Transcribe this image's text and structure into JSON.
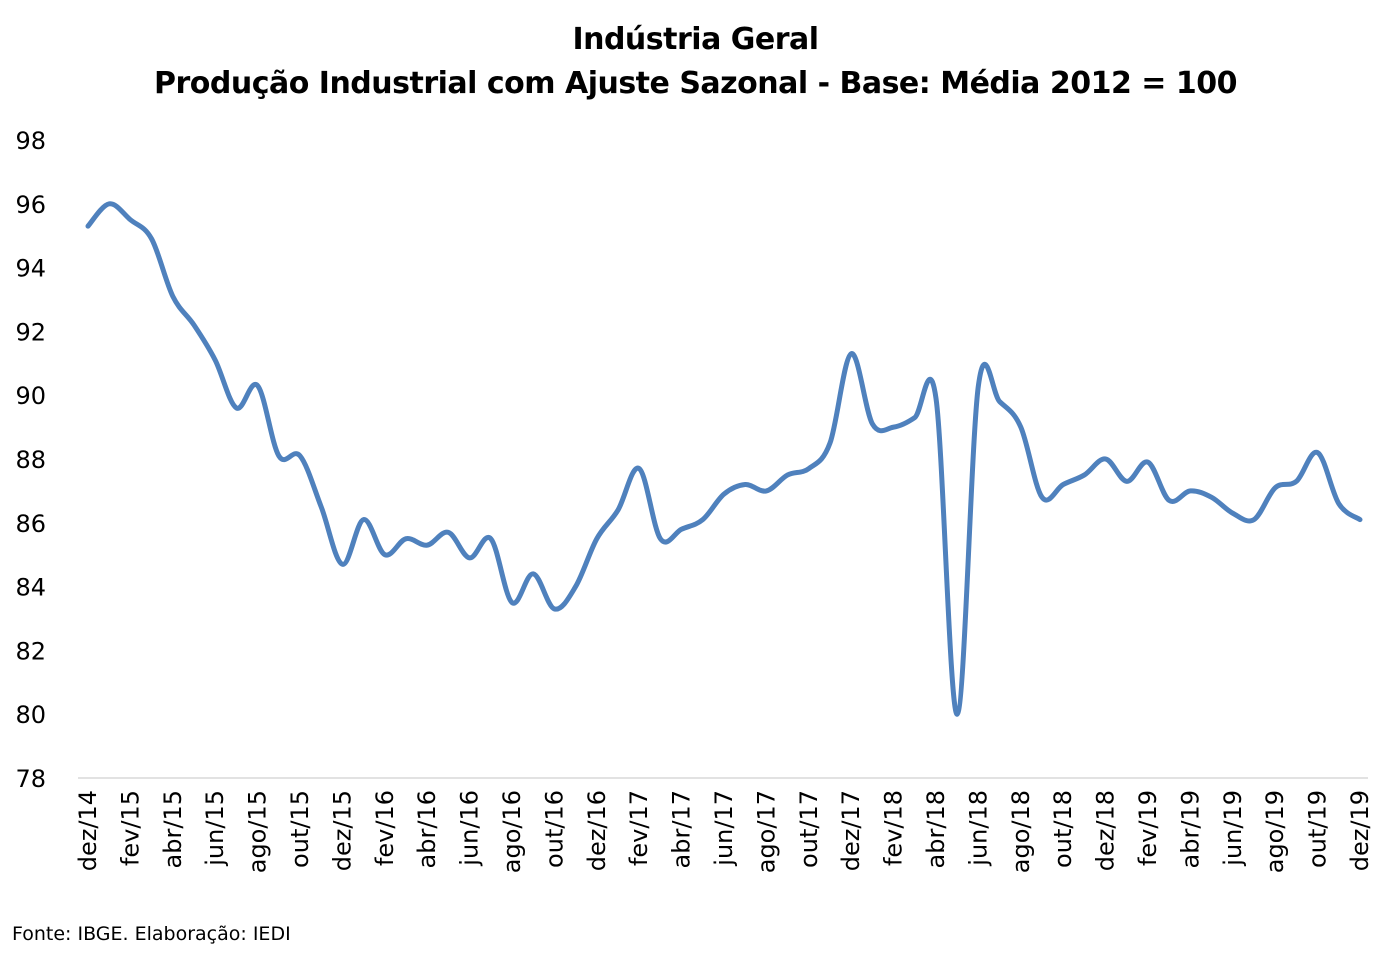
{
  "chart_data": {
    "type": "line",
    "title": "Indústria Geral",
    "subtitle": "Produção Industrial com Ajuste Sazonal - Base: Média 2012 = 100",
    "xlabel": "",
    "ylabel": "",
    "ylim": [
      78,
      98
    ],
    "yticks": [
      78,
      80,
      82,
      84,
      86,
      88,
      90,
      92,
      94,
      96,
      98
    ],
    "grid": false,
    "legend": "none",
    "line_color": "#4F81BD",
    "x": [
      "dez/14",
      "jan/15",
      "fev/15",
      "mar/15",
      "abr/15",
      "mai/15",
      "jun/15",
      "jul/15",
      "ago/15",
      "set/15",
      "out/15",
      "nov/15",
      "dez/15",
      "jan/16",
      "fev/16",
      "mar/16",
      "abr/16",
      "mai/16",
      "jun/16",
      "jul/16",
      "ago/16",
      "set/16",
      "out/16",
      "nov/16",
      "dez/16",
      "jan/17",
      "fev/17",
      "mar/17",
      "abr/17",
      "mai/17",
      "jun/17",
      "jul/17",
      "ago/17",
      "set/17",
      "out/17",
      "nov/17",
      "dez/17",
      "jan/18",
      "fev/18",
      "mar/18",
      "abr/18",
      "mai/18",
      "jun/18",
      "jul/18",
      "ago/18",
      "set/18",
      "out/18",
      "nov/18",
      "dez/18",
      "jan/19",
      "fev/19",
      "mar/19",
      "abr/19",
      "mai/19",
      "jun/19",
      "jul/19",
      "ago/19",
      "set/19",
      "out/19",
      "nov/19",
      "dez/19"
    ],
    "tick_labels_every": 2,
    "series": [
      {
        "name": "Indústria Geral",
        "values": [
          95.3,
          96.0,
          95.5,
          94.9,
          93.1,
          92.2,
          91.1,
          89.6,
          90.3,
          88.1,
          88.1,
          86.5,
          84.7,
          86.1,
          85.0,
          85.5,
          85.3,
          85.7,
          84.9,
          85.5,
          83.5,
          84.4,
          83.3,
          84.0,
          85.5,
          86.4,
          87.7,
          85.5,
          85.8,
          86.1,
          86.9,
          87.2,
          87.0,
          87.5,
          87.7,
          88.5,
          91.3,
          89.1,
          89.0,
          89.3,
          89.9,
          80.0,
          90.3,
          89.8,
          89.0,
          86.8,
          87.2,
          87.5,
          88.0,
          87.3,
          87.9,
          86.7,
          87.0,
          86.8,
          86.3,
          86.1,
          87.1,
          87.3,
          88.2,
          86.6,
          86.1
        ]
      }
    ]
  },
  "source": "Fonte: IBGE. Elaboração: IEDI"
}
